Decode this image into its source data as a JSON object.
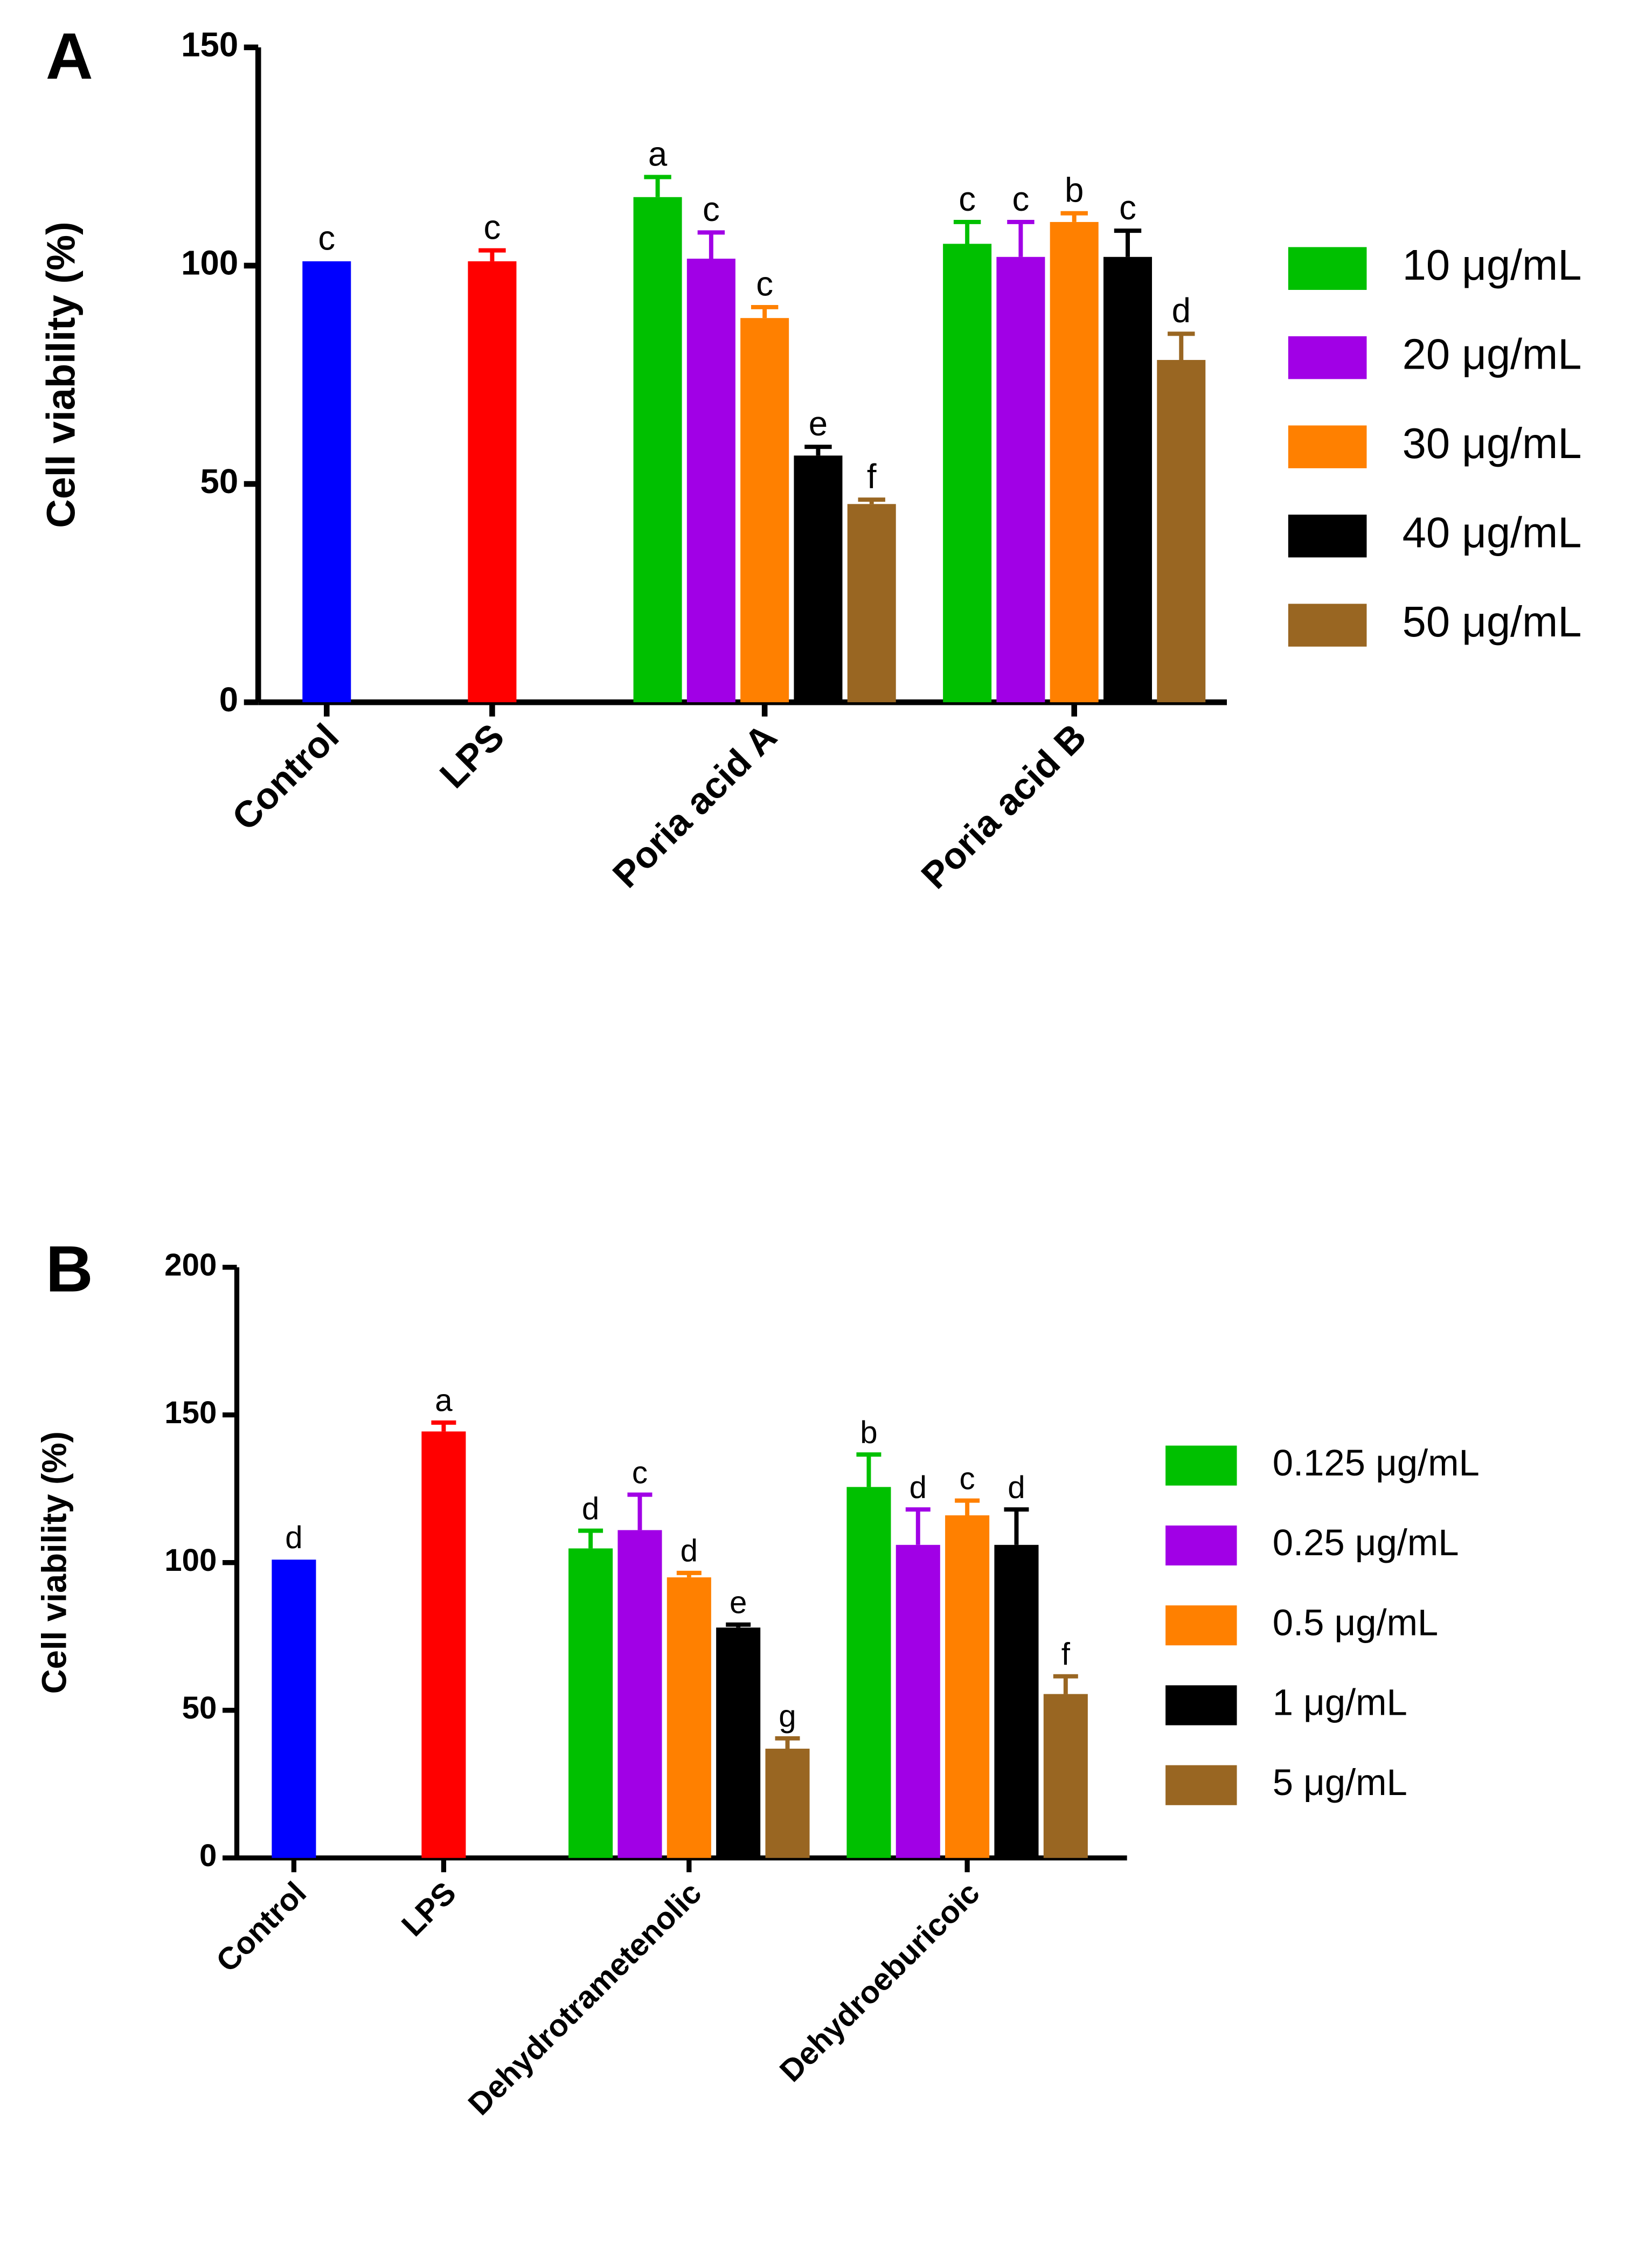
{
  "chart_data": [
    {
      "type": "bar",
      "panel": "A",
      "ylabel": "Cell viability (%)",
      "categories": [
        "Control",
        "LPS",
        "Poria acid A",
        "Poria acid B"
      ],
      "ylim": [
        0,
        150
      ],
      "yticks": [
        0,
        50,
        100,
        150
      ],
      "values": [
        101,
        101,
        null,
        null
      ],
      "errors": [
        0,
        2.5,
        null,
        null
      ],
      "colors": [
        "#0000ff",
        "#ff0000",
        null,
        null
      ],
      "letters": [
        "c",
        "c",
        null,
        null
      ],
      "series": [
        {
          "name": "10 μg/mL",
          "color": "#00c000",
          "values": [
            null,
            null,
            115.7,
            105
          ],
          "errors": [
            null,
            null,
            4.6,
            5
          ],
          "letters": [
            null,
            null,
            "a",
            "c"
          ]
        },
        {
          "name": "20 μg/mL",
          "color": "#a100e6",
          "values": [
            null,
            null,
            101.6,
            102
          ],
          "errors": [
            null,
            null,
            6,
            8
          ],
          "letters": [
            null,
            null,
            "c",
            "c"
          ]
        },
        {
          "name": "30 μg/mL",
          "color": "#ff8000",
          "values": [
            null,
            null,
            88,
            110
          ],
          "errors": [
            null,
            null,
            2.5,
            2
          ],
          "letters": [
            null,
            null,
            "c",
            "b"
          ]
        },
        {
          "name": "40 μg/mL",
          "color": "#000000",
          "values": [
            null,
            null,
            56.5,
            102
          ],
          "errors": [
            null,
            null,
            2,
            6
          ],
          "letters": [
            null,
            null,
            "e",
            "c"
          ]
        },
        {
          "name": "50 μg/mL",
          "color": "#996622",
          "values": [
            null,
            null,
            45.4,
            78.4
          ],
          "errors": [
            null,
            null,
            1,
            6
          ],
          "letters": [
            null,
            null,
            "f",
            "d"
          ]
        }
      ]
    },
    {
      "type": "bar",
      "panel": "B",
      "ylabel": "Cell viability (%)",
      "categories": [
        "Control",
        "LPS",
        "Dehydrotrametenolic",
        "Dehydroeburicoic"
      ],
      "ylim": [
        0,
        200
      ],
      "yticks": [
        0,
        50,
        100,
        150,
        200
      ],
      "values": [
        101,
        144.4,
        null,
        null
      ],
      "errors": [
        0,
        3,
        null,
        null
      ],
      "colors": [
        "#0000ff",
        "#ff0000",
        null,
        null
      ],
      "letters": [
        "d",
        "a",
        null,
        null
      ],
      "series": [
        {
          "name": "0.125 μg/mL",
          "color": "#00c000",
          "values": [
            null,
            null,
            104.8,
            125.6
          ],
          "errors": [
            null,
            null,
            6,
            11
          ],
          "letters": [
            null,
            null,
            "d",
            "b"
          ]
        },
        {
          "name": "0.25 μg/mL",
          "color": "#a100e6",
          "values": [
            null,
            null,
            111,
            106
          ],
          "errors": [
            null,
            null,
            12,
            12
          ],
          "letters": [
            null,
            null,
            "c",
            "d"
          ]
        },
        {
          "name": "0.5 μg/mL",
          "color": "#ff8000",
          "values": [
            null,
            null,
            95,
            116
          ],
          "errors": [
            null,
            null,
            1.5,
            5
          ],
          "letters": [
            null,
            null,
            "d",
            "c"
          ]
        },
        {
          "name": "1 μg/mL",
          "color": "#000000",
          "values": [
            null,
            null,
            78,
            106
          ],
          "errors": [
            null,
            null,
            1,
            12
          ],
          "letters": [
            null,
            null,
            "e",
            "d"
          ]
        },
        {
          "name": "5 μg/mL",
          "color": "#996622",
          "values": [
            null,
            null,
            37,
            55.5
          ],
          "errors": [
            null,
            null,
            3.5,
            6
          ],
          "letters": [
            null,
            null,
            "g",
            "f"
          ]
        }
      ]
    }
  ]
}
